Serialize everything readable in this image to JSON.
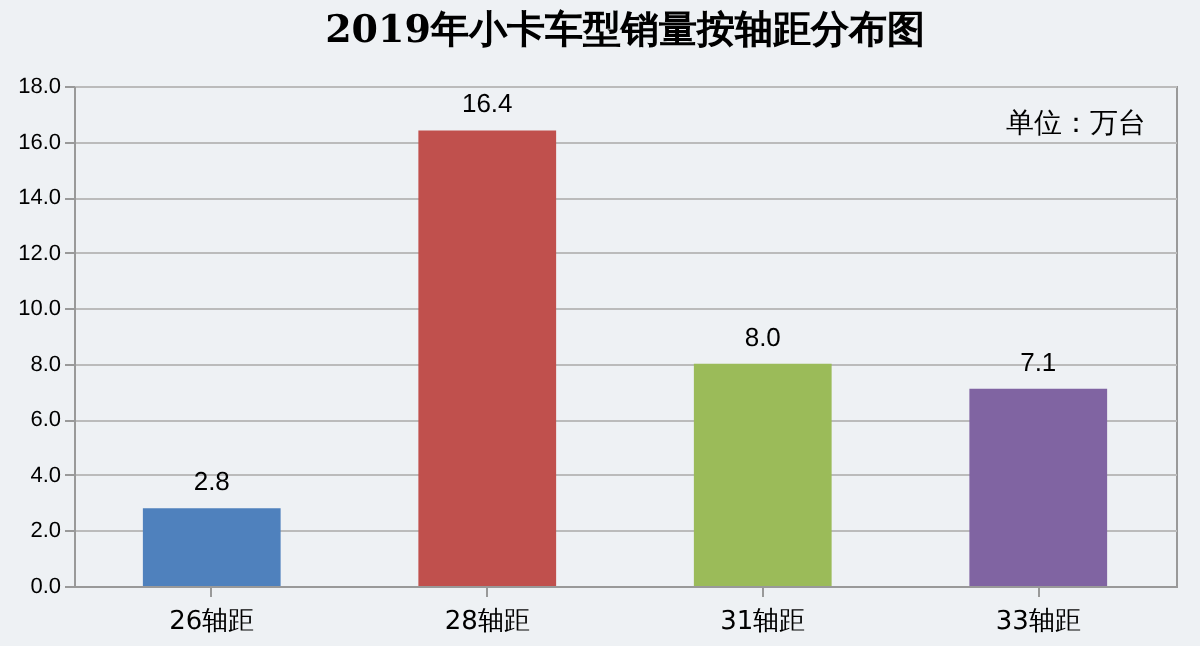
{
  "chart_data": {
    "type": "bar",
    "title": "2019年小卡车型销量按轴距分布图",
    "categories": [
      "26轴距",
      "28轴距",
      "31轴距",
      "33轴距"
    ],
    "values": [
      2.8,
      16.4,
      8.0,
      7.1
    ],
    "colors": [
      "#4f81bd",
      "#c0504d",
      "#9bbb59",
      "#8064a2"
    ],
    "value_labels": [
      "2.8",
      "16.4",
      "8.0",
      "7.1"
    ],
    "ylim": [
      0,
      18
    ],
    "yticks": [
      {
        "value": 0,
        "label": "0.0"
      },
      {
        "value": 2,
        "label": "2.0"
      },
      {
        "value": 4,
        "label": "4.0"
      },
      {
        "value": 6,
        "label": "6.0"
      },
      {
        "value": 8,
        "label": "8.0"
      },
      {
        "value": 10,
        "label": "10.0"
      },
      {
        "value": 12,
        "label": "12.0"
      },
      {
        "value": 14,
        "label": "14.0"
      },
      {
        "value": 16,
        "label": "16.0"
      },
      {
        "value": 18,
        "label": "18.0"
      }
    ],
    "grid": "y",
    "annotations": [
      "单位：万台"
    ]
  }
}
